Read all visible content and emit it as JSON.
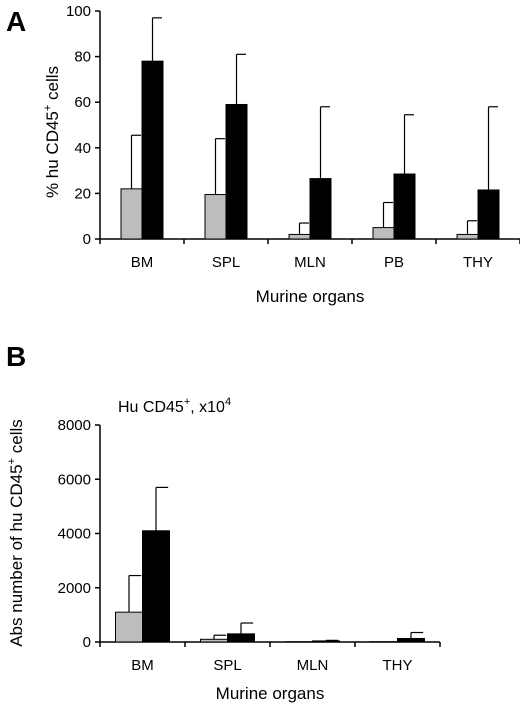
{
  "chart_data": [
    {
      "panel": "A",
      "type": "bar",
      "categories": [
        "BM",
        "SPL",
        "MLN",
        "PB",
        "THY"
      ],
      "series": [
        {
          "color": "#bdbdbd",
          "values": [
            22,
            19.5,
            2,
            5,
            2
          ],
          "errors": [
            23.5,
            24.5,
            5,
            11,
            6
          ]
        },
        {
          "color": "#000000",
          "values": [
            78,
            59,
            26.5,
            28.5,
            21.5
          ],
          "errors": [
            19,
            22,
            31.5,
            26,
            36.5
          ]
        }
      ],
      "ylabel_main": "% hu  CD45",
      "ylabel_sup": "+",
      "ylabel_tail": " cells",
      "xlabel": "Murine organs",
      "ylim": [
        0,
        100
      ],
      "yticks": [
        "0",
        "20",
        "40",
        "60",
        "80",
        "100"
      ]
    },
    {
      "panel": "B",
      "type": "bar",
      "categories": [
        "BM",
        "SPL",
        "MLN",
        "THY"
      ],
      "series": [
        {
          "color": "#bdbdbd",
          "values": [
            1100,
            100,
            10,
            10
          ],
          "errors": [
            1350,
            150,
            0,
            0
          ]
        },
        {
          "color": "#000000",
          "values": [
            4100,
            300,
            40,
            130
          ],
          "errors": [
            1600,
            400,
            20,
            220
          ]
        }
      ],
      "annotation_main": "Hu CD45",
      "annotation_sup1": "+",
      "annotation_mid": ", x10",
      "annotation_sup2": "4",
      "ylabel_main": "Abs number of  hu CD45",
      "ylabel_sup": "+",
      "ylabel_tail": " cells",
      "xlabel": "Murine organs",
      "ylim": [
        0,
        8000
      ],
      "yticks": [
        "0",
        "2000",
        "4000",
        "6000",
        "8000"
      ]
    }
  ]
}
